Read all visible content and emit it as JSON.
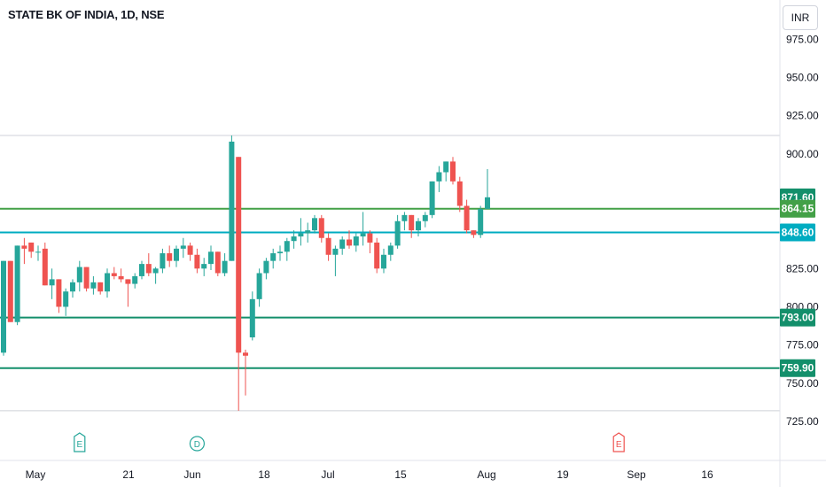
{
  "header": {
    "symbol_title": "STATE BK OF INDIA, 1D, NSE",
    "currency_label": "INR"
  },
  "colors": {
    "up": "#26a69a",
    "down": "#ef5350",
    "line_dark_green": "#138f6b",
    "line_green": "#43a047",
    "line_cyan": "#00acc1",
    "line_gray": "#cfd2d8",
    "tag_dark_green": "#138f6b",
    "tag_green": "#43a047",
    "tag_cyan": "#00acc1"
  },
  "chart_data": {
    "type": "candlestick",
    "y_axis_ticks": [
      "975.00",
      "950.00",
      "925.00",
      "900.00",
      "825.00",
      "800.00",
      "775.00",
      "750.00",
      "725.00"
    ],
    "x_axis_ticks": [
      "May",
      "21",
      "Jun",
      "18",
      "Jul",
      "15",
      "Aug",
      "19",
      "Sep",
      "16"
    ],
    "ylim": [
      720,
      985
    ],
    "horizontal_lines": [
      {
        "price": 864.15,
        "color": "green",
        "label": "864.15"
      },
      {
        "price": 848.6,
        "color": "cyan",
        "label": "848.60"
      },
      {
        "price": 793.0,
        "color": "dark_green",
        "label": "793.00"
      },
      {
        "price": 759.9,
        "color": "dark_green",
        "label": "759.90"
      },
      {
        "price": 912.0,
        "color": "gray",
        "label": ""
      },
      {
        "price": 732.0,
        "color": "gray",
        "label": ""
      }
    ],
    "last_price_label": "871.60",
    "event_markers": [
      {
        "label": "E",
        "date_index": 11,
        "color": "up"
      },
      {
        "label": "D",
        "date_index": 28,
        "color": "up"
      },
      {
        "label": "E",
        "date_index": 89,
        "color": "down"
      }
    ],
    "candles": [
      [
        770,
        830,
        768,
        830
      ],
      [
        830,
        830,
        790,
        790
      ],
      [
        790,
        840,
        788,
        840
      ],
      [
        840,
        845,
        828,
        838
      ],
      [
        842,
        842,
        832,
        836
      ],
      [
        836,
        840,
        830,
        836
      ],
      [
        838,
        842,
        814,
        814
      ],
      [
        814,
        825,
        805,
        818
      ],
      [
        818,
        818,
        796,
        800
      ],
      [
        800,
        812,
        794,
        810
      ],
      [
        810,
        818,
        806,
        816
      ],
      [
        816,
        830,
        810,
        826
      ],
      [
        826,
        826,
        810,
        812
      ],
      [
        812,
        820,
        808,
        816
      ],
      [
        816,
        816,
        808,
        810
      ],
      [
        810,
        825,
        806,
        822
      ],
      [
        822,
        826,
        818,
        820
      ],
      [
        820,
        825,
        816,
        818
      ],
      [
        818,
        818,
        800,
        815
      ],
      [
        815,
        822,
        812,
        820
      ],
      [
        820,
        830,
        818,
        828
      ],
      [
        828,
        835,
        820,
        822
      ],
      [
        822,
        826,
        815,
        825
      ],
      [
        825,
        838,
        822,
        835
      ],
      [
        835,
        840,
        826,
        830
      ],
      [
        830,
        840,
        826,
        838
      ],
      [
        838,
        845,
        832,
        840
      ],
      [
        840,
        842,
        830,
        834
      ],
      [
        834,
        838,
        822,
        825
      ],
      [
        825,
        832,
        820,
        828
      ],
      [
        828,
        840,
        824,
        836
      ],
      [
        836,
        836,
        820,
        822
      ],
      [
        822,
        835,
        820,
        830
      ],
      [
        830,
        912,
        830,
        908
      ],
      [
        898,
        898,
        732,
        770
      ],
      [
        770,
        772,
        742,
        768
      ],
      [
        780,
        810,
        778,
        805
      ],
      [
        805,
        825,
        800,
        822
      ],
      [
        822,
        832,
        818,
        830
      ],
      [
        830,
        838,
        825,
        835
      ],
      [
        835,
        840,
        830,
        836
      ],
      [
        836,
        845,
        830,
        843
      ],
      [
        843,
        850,
        838,
        846
      ],
      [
        846,
        858,
        840,
        848
      ],
      [
        848,
        855,
        842,
        850
      ],
      [
        850,
        860,
        848,
        858
      ],
      [
        858,
        860,
        842,
        845
      ],
      [
        845,
        848,
        830,
        834
      ],
      [
        834,
        840,
        820,
        838
      ],
      [
        838,
        846,
        834,
        844
      ],
      [
        844,
        850,
        838,
        840
      ],
      [
        840,
        848,
        836,
        846
      ],
      [
        846,
        862,
        840,
        848
      ],
      [
        848,
        850,
        835,
        842
      ],
      [
        842,
        845,
        822,
        825
      ],
      [
        825,
        838,
        822,
        834
      ],
      [
        834,
        842,
        830,
        840
      ],
      [
        840,
        860,
        838,
        856
      ],
      [
        856,
        862,
        850,
        860
      ],
      [
        860,
        860,
        845,
        850
      ],
      [
        850,
        858,
        846,
        856
      ],
      [
        856,
        862,
        852,
        860
      ],
      [
        860,
        882,
        858,
        882
      ],
      [
        882,
        892,
        875,
        888
      ],
      [
        888,
        895,
        882,
        895
      ],
      [
        895,
        898,
        880,
        882
      ],
      [
        882,
        885,
        862,
        866
      ],
      [
        866,
        870,
        848,
        850
      ],
      [
        850,
        850,
        845,
        847
      ],
      [
        847,
        866,
        845,
        864
      ],
      [
        864,
        890,
        864,
        871.6
      ]
    ]
  }
}
